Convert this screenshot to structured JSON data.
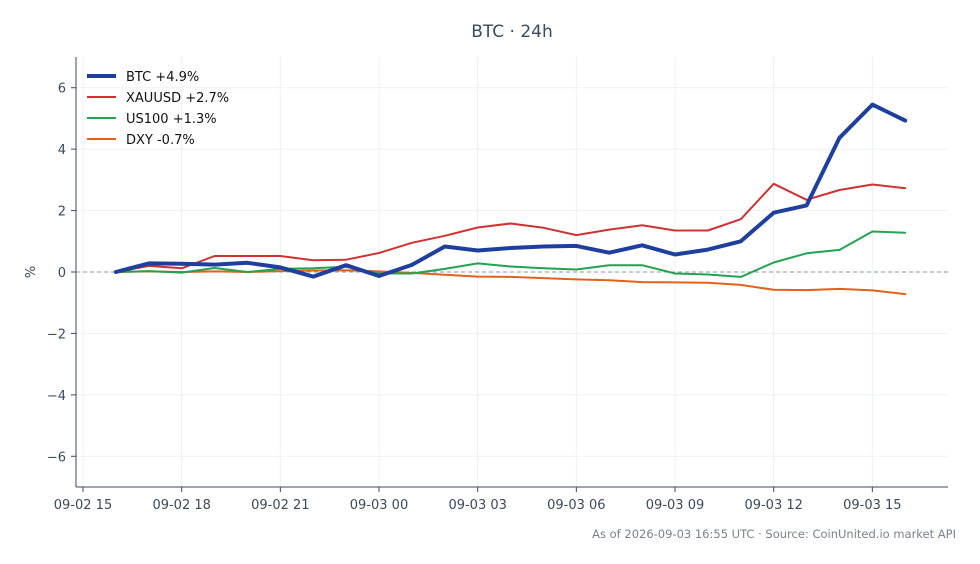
{
  "chart_data": {
    "type": "line",
    "title": "BTC · 24h",
    "xlabel": "",
    "ylabel": "%",
    "footer": "As of 2026-09-03 16:55 UTC · Source: CoinUnited.io market API",
    "ylim": [
      -7,
      7
    ],
    "yticks": [
      6,
      4,
      2,
      0,
      -2,
      -4,
      -6
    ],
    "ytick_labels": [
      "6",
      "4",
      "2",
      "0",
      "−2",
      "−4",
      "−6"
    ],
    "xlim": [
      0,
      26.3
    ],
    "xticks": [
      0,
      3,
      6,
      9,
      12,
      15,
      18,
      21,
      24
    ],
    "xtick_labels": [
      "09-02 15",
      "09-02 18",
      "09-02 21",
      "09-03 00",
      "09-03 03",
      "09-03 06",
      "09-03 09",
      "09-03 12",
      "09-03 15"
    ],
    "x": [
      1,
      2,
      3,
      4,
      5,
      6,
      7,
      8,
      9,
      10,
      11,
      12,
      13,
      14,
      15,
      16,
      17,
      18,
      19,
      20,
      21,
      22,
      23,
      24,
      25
    ],
    "grid": true,
    "legend_position": "top-left",
    "series": [
      {
        "name": "BTC +4.9%",
        "color": "#1f3f9e",
        "width": 4,
        "values": [
          0.0,
          0.28,
          0.27,
          0.24,
          0.3,
          0.15,
          -0.15,
          0.22,
          -0.13,
          0.23,
          0.83,
          0.7,
          0.78,
          0.83,
          0.85,
          0.63,
          0.87,
          0.57,
          0.73,
          1.0,
          1.93,
          2.17,
          4.37,
          5.45,
          4.93
        ]
      },
      {
        "name": "XAUUSD +2.7%",
        "color": "#d03131",
        "width": 2,
        "values": [
          0.0,
          0.2,
          0.12,
          0.52,
          0.52,
          0.52,
          0.38,
          0.4,
          0.62,
          0.95,
          1.18,
          1.45,
          1.58,
          1.44,
          1.2,
          1.38,
          1.52,
          1.35,
          1.35,
          1.72,
          2.87,
          2.35,
          2.67,
          2.85,
          2.73
        ]
      },
      {
        "name": "US100 +1.3%",
        "color": "#22a350",
        "width": 2,
        "values": [
          0.0,
          0.03,
          -0.02,
          0.13,
          0.0,
          0.1,
          0.12,
          0.17,
          -0.05,
          -0.05,
          0.1,
          0.28,
          0.18,
          0.12,
          0.08,
          0.22,
          0.22,
          -0.05,
          -0.08,
          -0.16,
          0.31,
          0.61,
          0.72,
          1.32,
          1.28
        ]
      },
      {
        "name": "DXY -0.7%",
        "color": "#e0621b",
        "width": 2,
        "values": [
          0.0,
          0.02,
          0.0,
          0.02,
          0.0,
          0.03,
          0.05,
          0.06,
          0.02,
          -0.03,
          -0.09,
          -0.15,
          -0.16,
          -0.2,
          -0.24,
          -0.27,
          -0.33,
          -0.34,
          -0.35,
          -0.42,
          -0.58,
          -0.59,
          -0.55,
          -0.6,
          -0.72
        ]
      }
    ]
  }
}
